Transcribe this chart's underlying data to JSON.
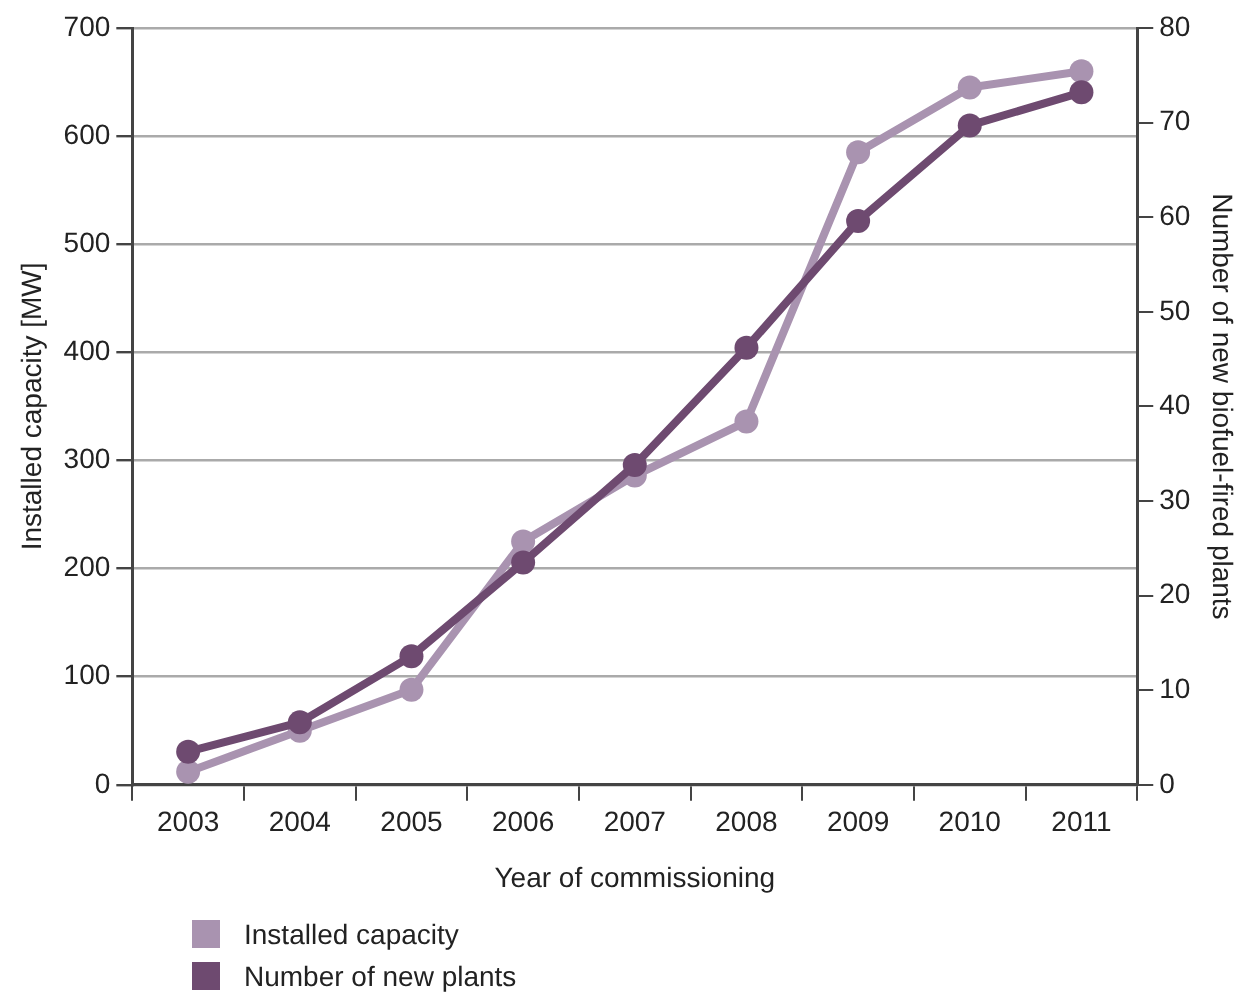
{
  "chart_data": {
    "type": "line",
    "xlabel": "Year of commissioning",
    "ylabel": "Installed capacity [MW]",
    "y2label": "Number of new biofuel-fired plants",
    "categories": [
      "2003",
      "2004",
      "2005",
      "2006",
      "2007",
      "2008",
      "2009",
      "2010",
      "2011"
    ],
    "series": [
      {
        "name": "Installed capacity",
        "color": "#a993b0",
        "values": [
          12,
          50,
          88,
          225,
          286,
          336,
          585,
          645,
          660
        ]
      },
      {
        "name": "Number of new plants",
        "color": "#6e4a70",
        "axis": "y2",
        "values": [
          3.5,
          6.6,
          13.6,
          23.5,
          33.8,
          46.2,
          59.6,
          69.7,
          73.2
        ]
      }
    ],
    "ylim": [
      0,
      700
    ],
    "yticks": [
      0,
      100,
      200,
      300,
      400,
      500,
      600,
      700
    ],
    "y2lim": [
      0,
      80
    ],
    "y2ticks": [
      0,
      10,
      20,
      30,
      40,
      50,
      60,
      70,
      80
    ],
    "grid": "y",
    "legend": "bottom left",
    "marker": "circle",
    "line_style": "solid"
  }
}
